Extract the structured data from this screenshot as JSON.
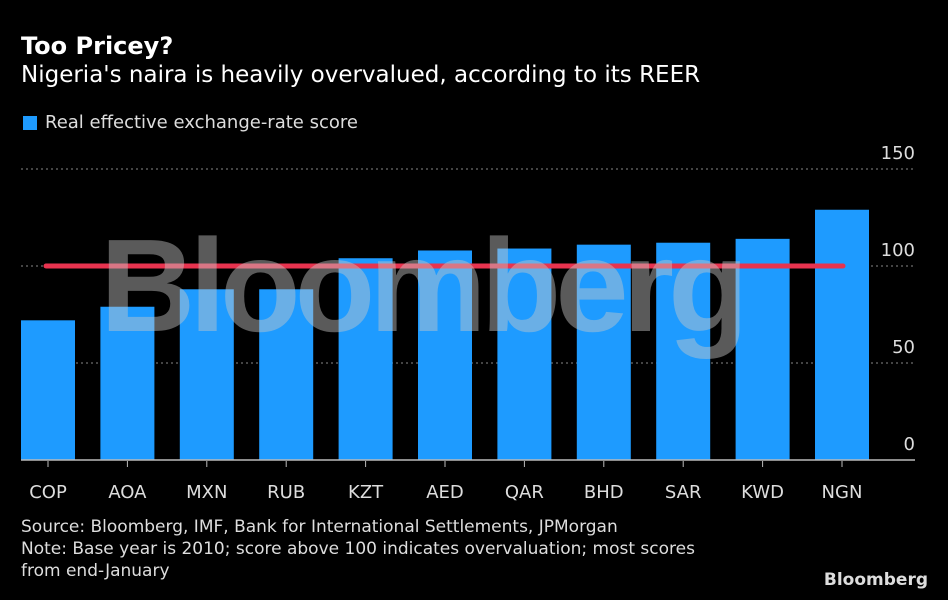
{
  "header": {
    "title": "Too Pricey?",
    "subtitle": "Nigeria's naira is heavily overvalued, according to its REER"
  },
  "footer": {
    "source": "Source: Bloomberg, IMF, Bank for International Settlements, JPMorgan",
    "note_line1": "Note: Base year is 2010; score above 100 indicates overvaluation; most scores",
    "note_line2": "from end-January",
    "logo": "Bloomberg"
  },
  "watermark": "Bloomberg",
  "colors": {
    "bar": "#1e9bff",
    "reference_line": "#e8334f",
    "grid": "#888888",
    "background": "#000000"
  },
  "chart_data": {
    "type": "bar",
    "title": "Too Pricey?",
    "subtitle": "Nigeria's naira is heavily overvalued, according to its REER",
    "xlabel": "",
    "ylabel": "",
    "categories": [
      "COP",
      "AOA",
      "MXN",
      "RUB",
      "KZT",
      "AED",
      "QAR",
      "BHD",
      "SAR",
      "KWD",
      "NGN"
    ],
    "series": [
      {
        "name": "Real effective exchange-rate score",
        "values": [
          72,
          79,
          88,
          88,
          104,
          108,
          109,
          111,
          112,
          114,
          129
        ]
      }
    ],
    "reference_line": {
      "value": 100
    },
    "ylim": [
      0,
      150
    ],
    "yticks": [
      "0",
      "50",
      "100",
      "150"
    ],
    "ytick_values": [
      0,
      50,
      100,
      150
    ],
    "grid": true,
    "legend": "top-left"
  }
}
